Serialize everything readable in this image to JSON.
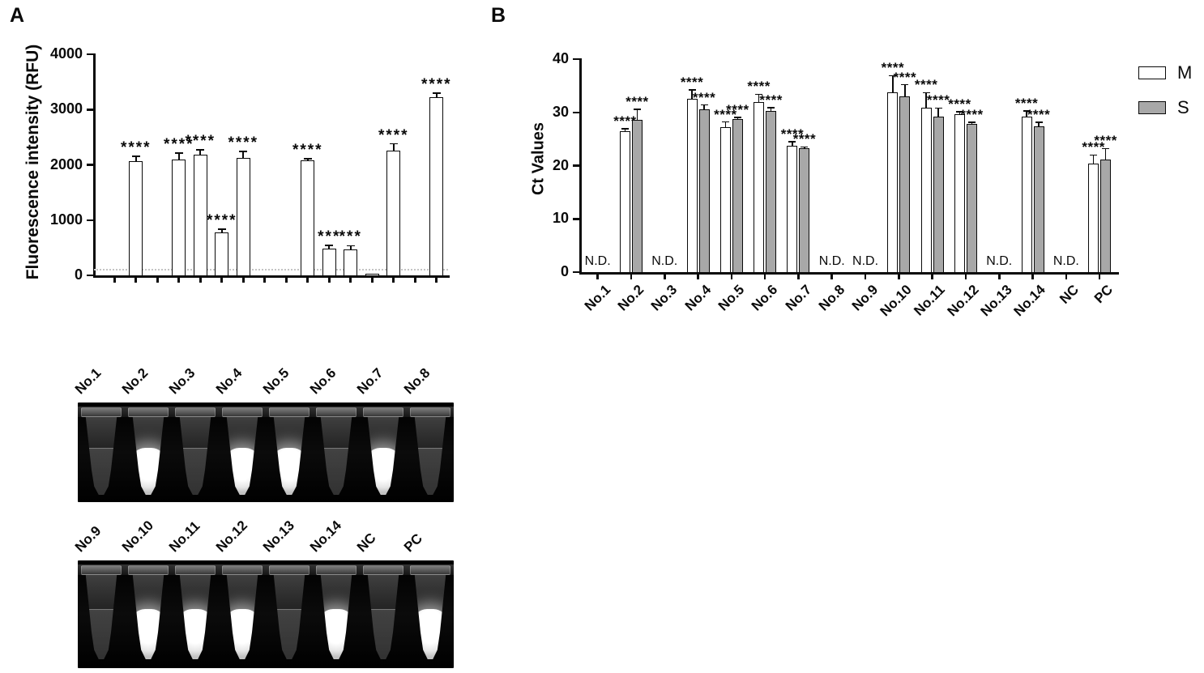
{
  "panels": {
    "a": {
      "label": "A"
    },
    "b": {
      "label": "B"
    }
  },
  "chart_data": [
    {
      "id": "fluorescence",
      "type": "bar",
      "title": "",
      "xlabel": "",
      "ylabel": "Fluorescence intensity (RFU)",
      "ylim": [
        0,
        4000
      ],
      "yticks": [
        0,
        1000,
        2000,
        3000,
        4000
      ],
      "grid": false,
      "threshold_line": 100,
      "bar_fill": "#ffffff",
      "bar_border": "#0a0a0a",
      "categories": [
        "No.1",
        "No.2",
        "No.3",
        "No.4",
        "No.5",
        "No.6",
        "No.7",
        "No.8",
        "No.9",
        "No.10",
        "No.11",
        "No.12",
        "No.13",
        "No.14",
        "NC",
        "PC"
      ],
      "values": [
        0,
        2060,
        0,
        2100,
        2180,
        780,
        2130,
        0,
        0,
        2080,
        480,
        465,
        25,
        2250,
        0,
        3220
      ],
      "errors": [
        0,
        90,
        0,
        110,
        90,
        55,
        110,
        0,
        0,
        30,
        60,
        70,
        0,
        130,
        0,
        75
      ],
      "significance": [
        "",
        "****",
        "",
        "****",
        "****",
        "****",
        "****",
        "",
        "",
        "****",
        "***",
        "***",
        "",
        "****",
        "",
        "****"
      ]
    },
    {
      "id": "ct-values",
      "type": "grouped-bar",
      "title": "",
      "xlabel": "",
      "ylabel": "Ct Values",
      "ylim": [
        0,
        40
      ],
      "yticks": [
        0,
        10,
        20,
        30,
        40
      ],
      "grid": false,
      "legend_position": "top-right",
      "nd_label": "N.D.",
      "nd_categories": [
        "No.1",
        "No.3",
        "No.8",
        "No.9",
        "No.13",
        "NC"
      ],
      "categories": [
        "No.1",
        "No.2",
        "No.3",
        "No.4",
        "No.5",
        "No.6",
        "No.7",
        "No.8",
        "No.9",
        "No.10",
        "No.11",
        "No.12",
        "No.13",
        "No.14",
        "NC",
        "PC"
      ],
      "series": [
        {
          "name": "M",
          "fill": "#ffffff",
          "border": "#0a0a0a",
          "values": [
            null,
            26.4,
            null,
            32.5,
            27.2,
            32.0,
            23.7,
            null,
            null,
            33.8,
            30.8,
            29.7,
            null,
            29.2,
            null,
            20.4
          ],
          "errors": [
            null,
            0.5,
            null,
            1.7,
            1.0,
            1.4,
            0.8,
            null,
            null,
            3.1,
            2.9,
            0.4,
            null,
            1.1,
            null,
            1.6
          ],
          "significance": [
            "",
            "****",
            "",
            "****",
            "****",
            "****",
            "****",
            "",
            "",
            "****",
            "****",
            "****",
            "",
            "****",
            "",
            "****"
          ]
        },
        {
          "name": "S",
          "fill": "#a8a8a8",
          "border": "#0a0a0a",
          "values": [
            null,
            28.6,
            null,
            30.5,
            28.8,
            30.3,
            23.3,
            null,
            null,
            33.0,
            29.2,
            27.9,
            null,
            27.4,
            null,
            21.1
          ],
          "errors": [
            null,
            2.0,
            null,
            0.9,
            0.3,
            0.6,
            0.2,
            null,
            null,
            2.2,
            1.6,
            0.2,
            null,
            0.7,
            null,
            2.1
          ],
          "significance": [
            "",
            "****",
            "",
            "****",
            "****",
            "****",
            "****",
            "",
            "",
            "****",
            "****",
            "****",
            "",
            "****",
            "",
            "****"
          ]
        }
      ]
    }
  ],
  "tube_photos": {
    "rows": [
      {
        "labels": [
          "No.1",
          "No.2",
          "No.3",
          "No.4",
          "No.5",
          "No.6",
          "No.7",
          "No.8"
        ],
        "bright": [
          false,
          true,
          false,
          true,
          true,
          false,
          true,
          false
        ]
      },
      {
        "labels": [
          "No.9",
          "No.10",
          "No.11",
          "No.12",
          "No.13",
          "No.14",
          "NC",
          "PC"
        ],
        "bright": [
          false,
          true,
          true,
          true,
          false,
          true,
          false,
          true
        ]
      }
    ]
  },
  "colors": {
    "axis": "#0a0a0a",
    "threshold_line": "#c4c4c4",
    "series_m_fill": "#ffffff",
    "series_s_fill": "#a8a8a8"
  }
}
